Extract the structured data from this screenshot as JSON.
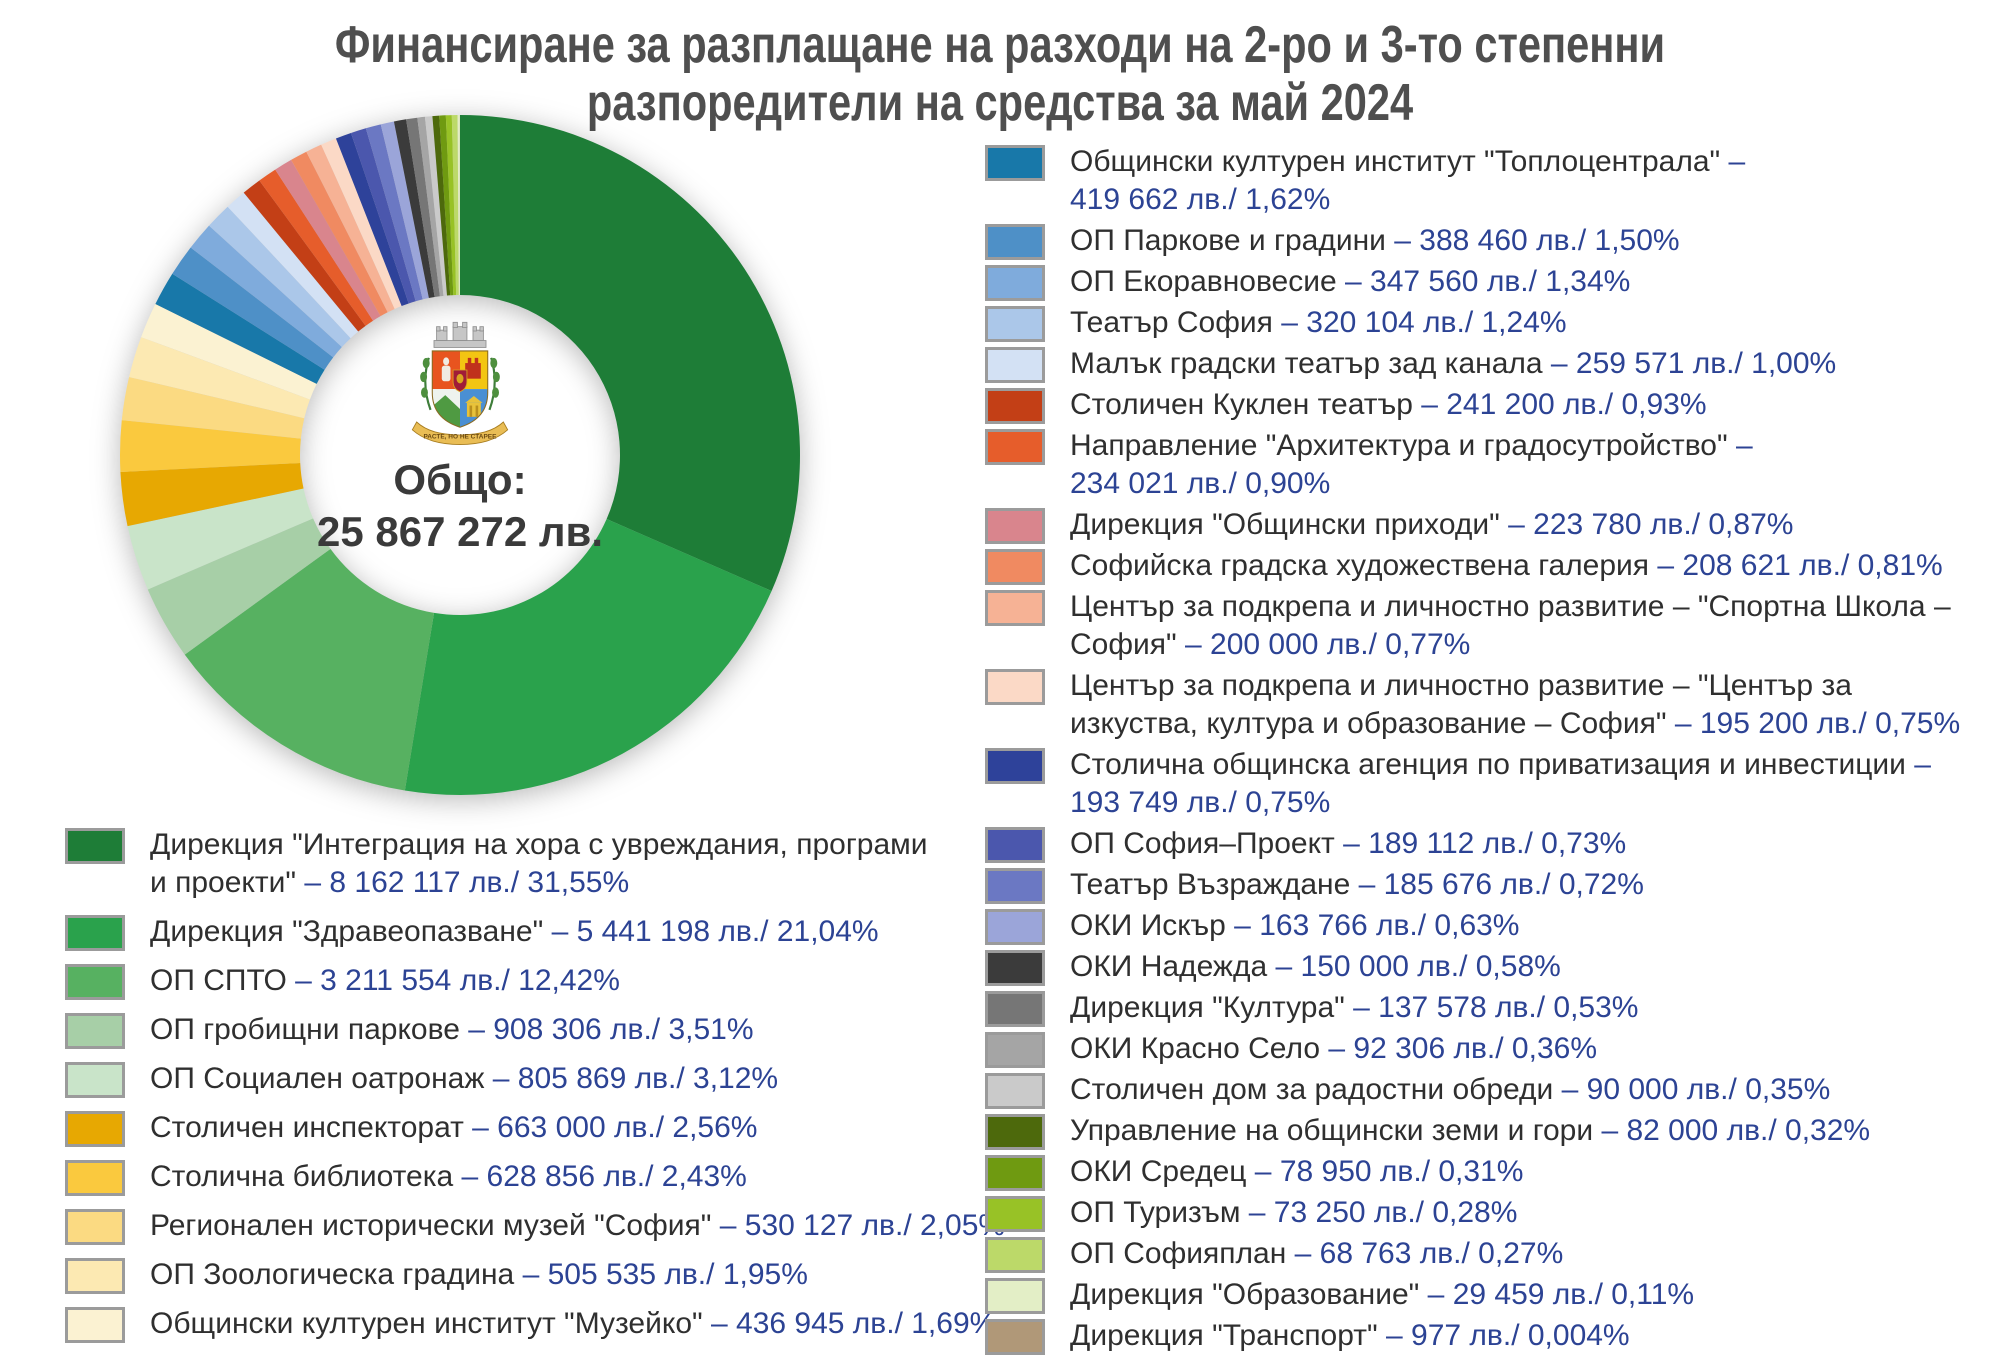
{
  "title": {
    "line1": "Финансиране за разплащане на разходи на 2-ро и 3-то степенни",
    "line2": "разпоредители на средства за май 2024"
  },
  "center": {
    "label": "Общо:",
    "total": "25 867 272 лв.",
    "emblem": "sofia-coat-of-arms",
    "motto": "РАСТЕ, НО НЕ СТАРЕЕ"
  },
  "chart_data": {
    "type": "pie",
    "donut": true,
    "start_angle_deg": -90,
    "direction": "clockwise",
    "title": "Финансиране за разплащане на разходи на 2-ро и 3-то степенни разпоредители на средства за май 2024",
    "total_value": 25867272,
    "unit": "лв.",
    "legend_position": "left-bottom and right column",
    "slices": [
      {
        "name": "Дирекция \"Интеграция на хора с увреждания, програми\nи проекти\"",
        "value_text": " – 8 162 117 лв./ 31,55%",
        "amount": 8162117,
        "pct": 31.55,
        "color": "#1e7d37"
      },
      {
        "name": "Дирекция \"Здравеопазване\"",
        "value_text": " – 5 441 198 лв./ 21,04%",
        "amount": 5441198,
        "pct": 21.04,
        "color": "#2aa24c"
      },
      {
        "name": "ОП СПТО",
        "value_text": " – 3 211 554 лв./ 12,42%",
        "amount": 3211554,
        "pct": 12.42,
        "color": "#57b161"
      },
      {
        "name": "ОП гробищни паркове",
        "value_text": " – 908 306 лв./ 3,51%",
        "amount": 908306,
        "pct": 3.51,
        "color": "#a7cfa7"
      },
      {
        "name": "ОП Социален оатронаж",
        "value_text": " – 805 869 лв./ 3,12%",
        "amount": 805869,
        "pct": 3.12,
        "color": "#c9e4c9"
      },
      {
        "name": "Столичен инспекторат",
        "value_text": " – 663 000 лв./ 2,56%",
        "amount": 663000,
        "pct": 2.56,
        "color": "#e7a802"
      },
      {
        "name": "Столична библиотека",
        "value_text": " – 628 856 лв./ 2,43%",
        "amount": 628856,
        "pct": 2.43,
        "color": "#fac93e"
      },
      {
        "name": "Регионален исторически музей \"София\"",
        "value_text": " – 530 127 лв./ 2,05%",
        "amount": 530127,
        "pct": 2.05,
        "color": "#fbda82"
      },
      {
        "name": "ОП Зоологическа градина",
        "value_text": " – 505 535 лв./ 1,95%",
        "amount": 505535,
        "pct": 1.95,
        "color": "#fce9b2"
      },
      {
        "name": "Общински културен институт \"Музейко\"",
        "value_text": " – 436 945 лв./ 1,69%",
        "amount": 436945,
        "pct": 1.69,
        "color": "#fbf2d2"
      },
      {
        "name": "Общински културен институт \"Топлоцентрала\"",
        "value_text": " –\n419 662 лв./ 1,62%",
        "amount": 419662,
        "pct": 1.62,
        "color": "#1878a9"
      },
      {
        "name": "ОП Паркове и градини",
        "value_text": " – 388 460 лв./ 1,50%",
        "amount": 388460,
        "pct": 1.5,
        "color": "#4e90c7"
      },
      {
        "name": "ОП Екоравновесие",
        "value_text": " – 347 560 лв./ 1,34%",
        "amount": 347560,
        "pct": 1.34,
        "color": "#7fabdc"
      },
      {
        "name": "Театър София",
        "value_text": " – 320 104 лв./ 1,24%",
        "amount": 320104,
        "pct": 1.24,
        "color": "#abc7e9"
      },
      {
        "name": "Малък градски театър зад канала",
        "value_text": " – 259 571 лв./ 1,00%",
        "amount": 259571,
        "pct": 1.0,
        "color": "#d3e1f4"
      },
      {
        "name": "Столичен Куклен театър",
        "value_text": " – 241 200 лв./ 0,93%",
        "amount": 241200,
        "pct": 0.93,
        "color": "#c33f16"
      },
      {
        "name": "Направление \"Архитектура и градосутройство\"",
        "value_text": " –\n234 021 лв./ 0,90%",
        "amount": 234021,
        "pct": 0.9,
        "color": "#e65d2b"
      },
      {
        "name": "Дирекция \"Общински приходи\"",
        "value_text": " – 223 780 лв./ 0,87%",
        "amount": 223780,
        "pct": 0.87,
        "color": "#d9858d"
      },
      {
        "name": "Софийска градска художествена галерия",
        "value_text": " – 208 621 лв./ 0,81%",
        "amount": 208621,
        "pct": 0.81,
        "color": "#f08a61"
      },
      {
        "name": "Център за подкрепа и личностно развитие – \"Спортна Школа –\nСофия\"",
        "value_text": " – 200 000 лв./ 0,77%",
        "amount": 200000,
        "pct": 0.77,
        "color": "#f6b295"
      },
      {
        "name": "Център за подкрепа и личностно развитие – \"Център за\nизкуства, култура и образование – София\"",
        "value_text": " – 195 200 лв./ 0,75%",
        "amount": 195200,
        "pct": 0.75,
        "color": "#fbd9c6"
      },
      {
        "name": "Столична общинска агенция по приватизация и инвестиции",
        "value_text": " –\n193 749 лв./ 0,75%",
        "amount": 193749,
        "pct": 0.75,
        "color": "#2e429a"
      },
      {
        "name": "ОП София–Проект",
        "value_text": " – 189 112 лв./ 0,73%",
        "amount": 189112,
        "pct": 0.73,
        "color": "#4b57ad"
      },
      {
        "name": "Театър Възраждане",
        "value_text": " – 185 676 лв./ 0,72%",
        "amount": 185676,
        "pct": 0.72,
        "color": "#6b78c3"
      },
      {
        "name": "ОКИ Искър",
        "value_text": " – 163 766 лв./ 0,63%",
        "amount": 163766,
        "pct": 0.63,
        "color": "#9ba5d9"
      },
      {
        "name": "ОКИ Надежда",
        "value_text": " – 150 000 лв./ 0,58%",
        "amount": 150000,
        "pct": 0.58,
        "color": "#3b3b3b"
      },
      {
        "name": "Дирекция \"Култура\"",
        "value_text": " – 137 578 лв./ 0,53%",
        "amount": 137578,
        "pct": 0.53,
        "color": "#767676"
      },
      {
        "name": "ОКИ Красно Село",
        "value_text": " – 92 306 лв./ 0,36%",
        "amount": 92306,
        "pct": 0.36,
        "color": "#a5a5a5"
      },
      {
        "name": "Столичен дом за радостни обреди",
        "value_text": " – 90 000 лв./ 0,35%",
        "amount": 90000,
        "pct": 0.35,
        "color": "#cacaca"
      },
      {
        "name": "Управление на общински земи и гори",
        "value_text": " – 82 000 лв./ 0,32%",
        "amount": 82000,
        "pct": 0.32,
        "color": "#4d690c"
      },
      {
        "name": "ОКИ Средец",
        "value_text": " – 78 950 лв./ 0,31%",
        "amount": 78950,
        "pct": 0.31,
        "color": "#6f9a11"
      },
      {
        "name": "ОП Туризъм",
        "value_text": " – 73 250 лв./ 0,28%",
        "amount": 73250,
        "pct": 0.28,
        "color": "#98c226"
      },
      {
        "name": "ОП Софияплан",
        "value_text": " – 68 763 лв./ 0,27%",
        "amount": 68763,
        "pct": 0.27,
        "color": "#bcd969"
      },
      {
        "name": "Дирекция \"Образование\"",
        "value_text": " – 29 459 лв./ 0,11%",
        "amount": 29459,
        "pct": 0.11,
        "color": "#e3eec6"
      },
      {
        "name": "Дирекция \"Транспорт\"",
        "value_text": " – 977 лв./ 0,004%",
        "amount": 977,
        "pct": 0.004,
        "color": "#b09878"
      }
    ]
  },
  "legend": {
    "left_indices": [
      0,
      1,
      2,
      3,
      4,
      5,
      6,
      7,
      8,
      9
    ],
    "right_indices": [
      10,
      11,
      12,
      13,
      14,
      15,
      16,
      17,
      18,
      19,
      20,
      21,
      22,
      23,
      24,
      25,
      26,
      27,
      28,
      29,
      30,
      31,
      32,
      33,
      34
    ]
  }
}
